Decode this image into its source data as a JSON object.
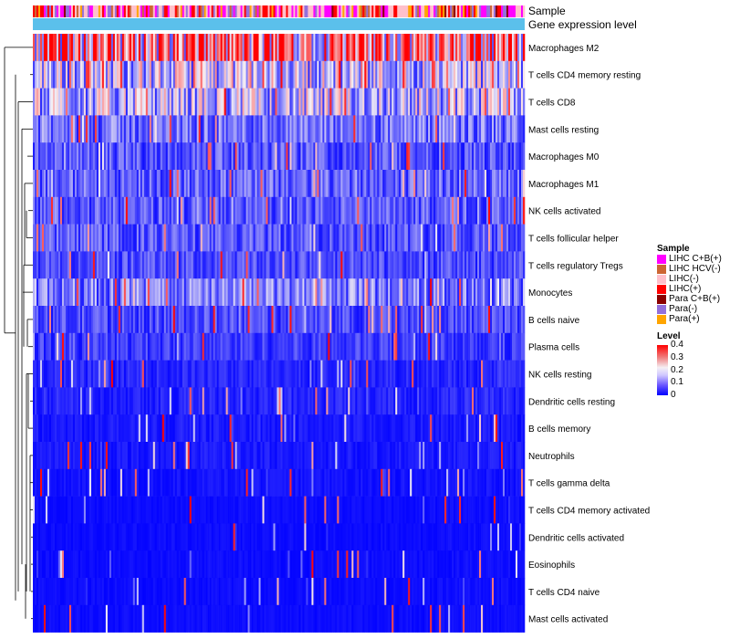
{
  "chart_data": {
    "type": "heatmap",
    "annotation_rows": [
      "Sample",
      "Gene expression level"
    ],
    "rows": [
      {
        "label": "Macrophages M2",
        "mean": 0.28
      },
      {
        "label": "T cells CD4 memory resting",
        "mean": 0.16
      },
      {
        "label": "T cells CD8",
        "mean": 0.15
      },
      {
        "label": "Mast cells resting",
        "mean": 0.09
      },
      {
        "label": "Macrophages M0",
        "mean": 0.07
      },
      {
        "label": "Macrophages M1",
        "mean": 0.08
      },
      {
        "label": "NK cells activated",
        "mean": 0.07
      },
      {
        "label": "T cells follicular helper",
        "mean": 0.07
      },
      {
        "label": "T cells regulatory  Tregs",
        "mean": 0.06
      },
      {
        "label": "Monocytes",
        "mean": 0.1
      },
      {
        "label": "B cells naive",
        "mean": 0.06
      },
      {
        "label": "Plasma cells",
        "mean": 0.05
      },
      {
        "label": "NK cells resting",
        "mean": 0.03
      },
      {
        "label": "Dendritic cells resting",
        "mean": 0.03
      },
      {
        "label": "B cells memory",
        "mean": 0.02
      },
      {
        "label": "Neutrophils",
        "mean": 0.02
      },
      {
        "label": "T cells gamma delta",
        "mean": 0.015
      },
      {
        "label": "T cells CD4 memory activated",
        "mean": 0.01
      },
      {
        "label": "Dendritic cells activated",
        "mean": 0.01
      },
      {
        "label": "Eosinophils",
        "mean": 0.01
      },
      {
        "label": "T cells CD4 naive",
        "mean": 0.01
      },
      {
        "label": "Mast cells activated",
        "mean": 0.01
      }
    ],
    "color_scale": {
      "min": 0,
      "max": 0.4,
      "low": "#0000ff",
      "mid": "#f5f0f5",
      "high": "#ff0000"
    },
    "n_columns": 270
  },
  "legend": {
    "sample_title": "Sample",
    "samples": [
      {
        "label": "LIHC C+B(+)",
        "color": "#ff00ff"
      },
      {
        "label": "LIHC HCV(-)",
        "color": "#cd6633"
      },
      {
        "label": "LIHC(-)",
        "color": "#ffc0cb"
      },
      {
        "label": "LIHC(+)",
        "color": "#ff0000"
      },
      {
        "label": "Para C+B(+)",
        "color": "#8b0000"
      },
      {
        "label": "Para(-)",
        "color": "#9370db"
      },
      {
        "label": "Para(+)",
        "color": "#ffa500"
      }
    ],
    "level_title": "Level",
    "level_ticks": [
      "0.4",
      "0.3",
      "0.2",
      "0.1",
      "0"
    ],
    "level_values": [
      0.4,
      0.3,
      0.2,
      0.1,
      0
    ]
  },
  "colors": {
    "expression_bar": "#5bc0eb",
    "dendrogram": "#000000"
  }
}
